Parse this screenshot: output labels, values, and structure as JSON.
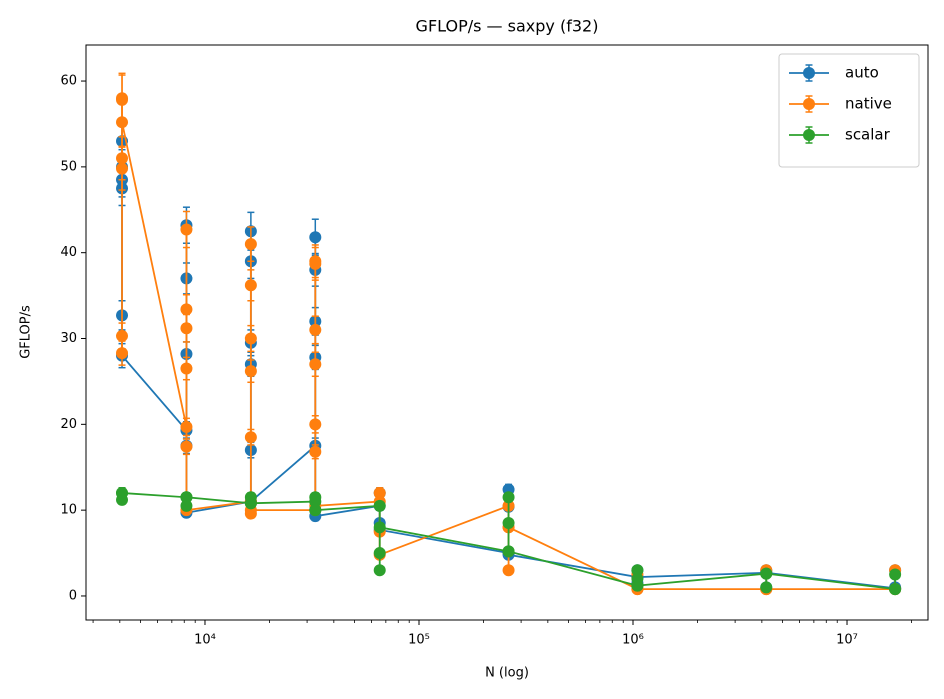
{
  "chart_data": {
    "type": "errorbar",
    "title": "GFLOP/s — saxpy (f32)",
    "xlabel": "N (log)",
    "ylabel": "GFLOP/s",
    "xscale": "log",
    "xlim": [
      2780,
      23900000
    ],
    "xticks": [
      {
        "value": 10000,
        "label": "10⁴"
      },
      {
        "value": 100000,
        "label": "10⁵"
      },
      {
        "value": 1000000,
        "label": "10⁶"
      },
      {
        "value": 10000000,
        "label": "10⁷"
      }
    ],
    "ylim": [
      -2.8,
      64.2
    ],
    "yticks": [
      0,
      10,
      20,
      30,
      40,
      50,
      60
    ],
    "grid": false,
    "legend": "upper right",
    "series": [
      {
        "name": "auto",
        "color": "#1f77b4",
        "x": [
          4096,
          4096,
          4096,
          4096,
          4096,
          4096,
          8192,
          8192,
          8192,
          8192,
          8192,
          8192,
          16384,
          16384,
          16384,
          16384,
          16384,
          16384,
          16384,
          32768,
          32768,
          32768,
          32768,
          32768,
          32768,
          65536,
          65536,
          65536,
          65536,
          262144,
          262144,
          262144,
          262144,
          1048576,
          1048576,
          1048576,
          1048576,
          4194304,
          4194304,
          4194304,
          4194304,
          16777216,
          16777216,
          16777216,
          16777216
        ],
        "values": [
          53,
          50,
          48.5,
          47.5,
          32.7,
          28,
          19.3,
          43.2,
          37,
          28.2,
          17.5,
          9.7,
          11,
          42.5,
          39,
          29.5,
          27,
          17,
          11,
          17.5,
          41.8,
          38,
          32,
          27.8,
          9.3,
          10.5,
          12,
          8.5,
          7.7,
          5,
          12.4,
          10.4,
          4.8,
          2.2,
          3,
          1.5,
          2.2,
          2.7,
          3,
          1,
          2.7,
          0.9,
          3,
          1,
          0.9
        ],
        "errors": [
          2,
          2,
          2,
          2,
          1.7,
          1.4,
          1,
          2.1,
          1.8,
          1.4,
          0.9,
          0.5,
          0.6,
          2.2,
          2,
          1.5,
          1.4,
          0.9,
          0.6,
          0.9,
          2.1,
          1.9,
          1.6,
          1.4,
          0.5,
          0.5,
          0.6,
          0.4,
          0.4,
          0.3,
          0.6,
          0.5,
          0.3,
          0.2,
          0.2,
          0.2,
          0.2,
          0.2,
          0.2,
          0.2,
          0.2,
          0.2,
          0.2,
          0.2,
          0.2
        ]
      },
      {
        "name": "native",
        "color": "#ff7f0e",
        "x": [
          4096,
          4096,
          4096,
          4096,
          4096,
          4096,
          4096,
          8192,
          8192,
          8192,
          8192,
          8192,
          8192,
          8192,
          16384,
          16384,
          16384,
          16384,
          16384,
          16384,
          16384,
          16384,
          32768,
          32768,
          32768,
          32768,
          32768,
          32768,
          32768,
          32768,
          65536,
          65536,
          65536,
          65536,
          262144,
          262144,
          262144,
          262144,
          1048576,
          1048576,
          1048576,
          4194304,
          4194304,
          4194304,
          16777216,
          16777216,
          16777216
        ],
        "values": [
          28.3,
          30.3,
          58,
          57.8,
          51,
          49.8,
          55.2,
          19.7,
          42.7,
          33.4,
          31.2,
          26.5,
          17.4,
          10,
          11,
          41,
          36.2,
          30,
          26.2,
          18.5,
          9.6,
          10,
          10,
          39,
          38.7,
          31,
          27,
          20,
          16.8,
          10.5,
          11,
          12,
          7.5,
          4.8,
          10.5,
          8,
          3,
          8,
          0.8,
          2.5,
          0.8,
          0.8,
          3,
          0.8,
          0.8,
          3,
          0.8
        ],
        "errors": [
          1.4,
          1.5,
          2.9,
          2.9,
          2.5,
          2.5,
          2.8,
          1,
          2.1,
          1.7,
          1.6,
          1.3,
          0.9,
          0.5,
          0.6,
          2,
          1.8,
          1.5,
          1.3,
          0.9,
          0.5,
          0.5,
          0.5,
          1.9,
          1.9,
          1.6,
          1.4,
          1,
          0.8,
          0.5,
          0.6,
          0.6,
          0.4,
          0.3,
          0.5,
          0.4,
          0.2,
          0.4,
          0.1,
          0.2,
          0.1,
          0.1,
          0.2,
          0.1,
          0.1,
          0.2,
          0.1
        ]
      },
      {
        "name": "scalar",
        "color": "#2ca02c",
        "x": [
          4096,
          4096,
          4096,
          8192,
          8192,
          8192,
          16384,
          16384,
          16384,
          32768,
          32768,
          32768,
          32768,
          65536,
          65536,
          65536,
          65536,
          262144,
          262144,
          262144,
          262144,
          1048576,
          1048576,
          1048576,
          1048576,
          4194304,
          4194304,
          4194304,
          16777216,
          16777216,
          16777216
        ],
        "values": [
          11.2,
          12,
          12,
          11.5,
          10.5,
          11.5,
          10.8,
          11.5,
          10.8,
          11,
          10,
          11.5,
          10,
          10.5,
          3,
          5,
          8,
          5.2,
          11.5,
          8.5,
          5.2,
          1.2,
          3,
          2,
          1.2,
          2.6,
          1,
          2.6,
          0.8,
          2.5,
          0.8
        ],
        "errors": [
          0.5,
          0.6,
          0.6,
          0.5,
          0.5,
          0.5,
          0.5,
          0.5,
          0.5,
          0.5,
          0.5,
          0.5,
          0.5,
          0.5,
          0.2,
          0.3,
          0.4,
          0.3,
          0.5,
          0.4,
          0.3,
          0.1,
          0.2,
          0.1,
          0.1,
          0.1,
          0.1,
          0.1,
          0.1,
          0.1,
          0.1
        ]
      }
    ]
  }
}
